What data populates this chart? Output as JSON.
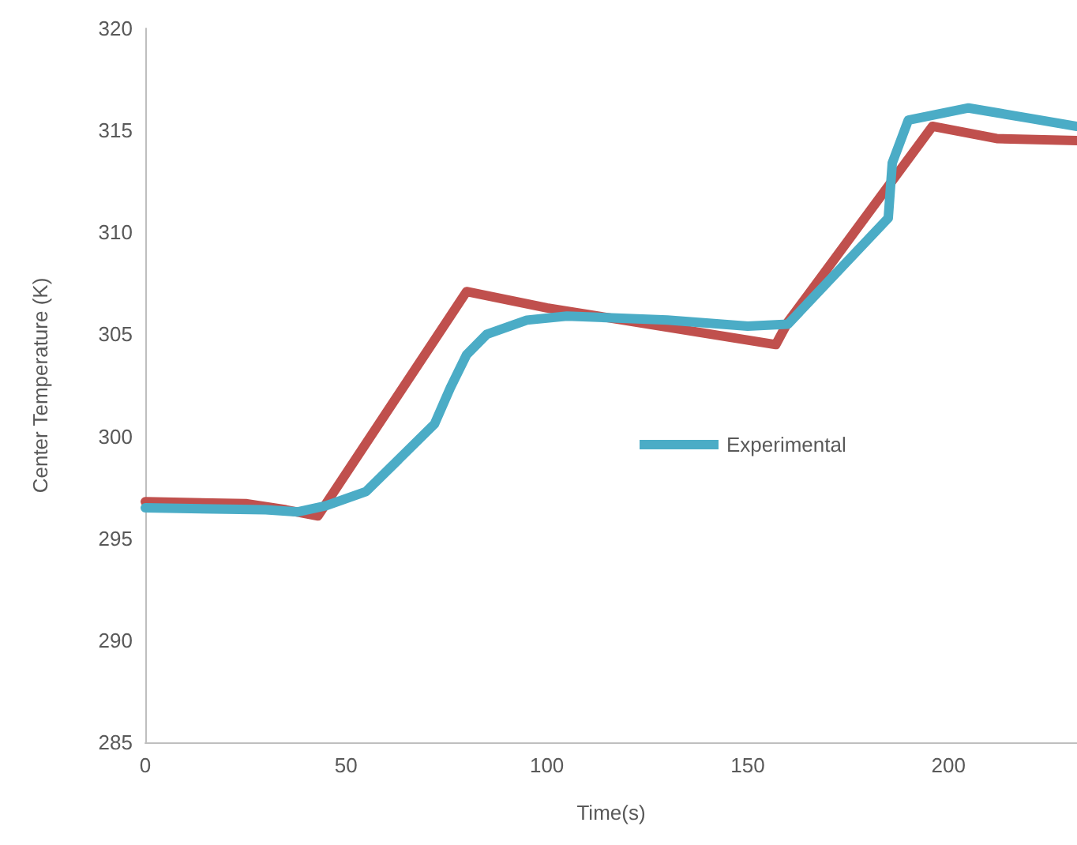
{
  "chart_data": {
    "type": "line",
    "xlabel": "Time(s)",
    "ylabel": "Center Temperature (K)",
    "xlim": [
      0,
      232
    ],
    "xticks": [
      0,
      50,
      100,
      150,
      200
    ],
    "ylim": [
      285,
      320
    ],
    "yticks": [
      285,
      290,
      295,
      300,
      305,
      310,
      315,
      320
    ],
    "grid": false,
    "legend": "right",
    "marker": "none",
    "line_style": "solid",
    "series": [
      {
        "color": "#c0504d",
        "x": [
          0,
          25,
          35,
          43,
          80,
          100,
          157,
          160,
          196,
          212,
          232
        ],
        "values": [
          296.8,
          296.7,
          296.4,
          296.1,
          307.1,
          306.3,
          304.5,
          305.6,
          315.2,
          314.6,
          314.5
        ]
      },
      {
        "name": "Experimental",
        "color": "#4bacc6",
        "x": [
          0,
          30,
          38,
          45,
          55,
          72,
          76,
          80,
          85,
          95,
          105,
          130,
          150,
          160,
          185,
          186,
          190,
          205,
          220,
          232
        ],
        "values": [
          296.5,
          296.4,
          296.3,
          296.6,
          297.3,
          300.6,
          302.4,
          304,
          305,
          305.7,
          305.9,
          305.7,
          305.4,
          305.5,
          310.7,
          313.4,
          315.5,
          316.1,
          315.6,
          315.2
        ]
      }
    ]
  }
}
